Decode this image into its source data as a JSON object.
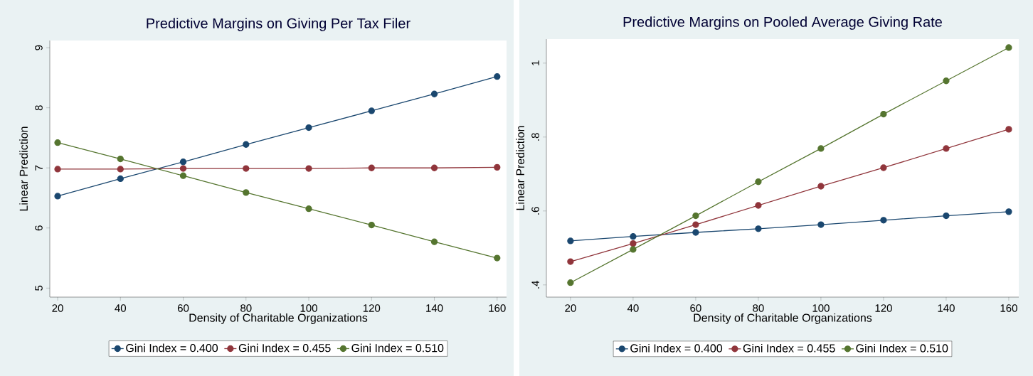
{
  "chart_data": [
    {
      "type": "line",
      "title": "Predictive Margins on Giving Per Tax Filer",
      "xlabel": "Density of Charitable Organizations",
      "ylabel": "Linear Prediction",
      "x": [
        20,
        40,
        60,
        80,
        100,
        120,
        140,
        160
      ],
      "series": [
        {
          "name": "Gini Index = 0.400",
          "color": "#1a476f",
          "values": [
            6.53,
            6.82,
            7.1,
            7.39,
            7.67,
            7.95,
            8.23,
            8.52
          ]
        },
        {
          "name": "Gini Index = 0.455",
          "color": "#90353b",
          "values": [
            6.98,
            6.98,
            6.99,
            6.99,
            6.99,
            7.0,
            7.0,
            7.01
          ]
        },
        {
          "name": "Gini Index = 0.510",
          "color": "#55752f",
          "values": [
            7.42,
            7.15,
            6.87,
            6.59,
            6.32,
            6.05,
            5.77,
            5.5
          ]
        }
      ],
      "xlim": [
        17.5,
        163
      ],
      "ylim": [
        4.85,
        9.12
      ],
      "xticks": [
        20,
        40,
        60,
        80,
        100,
        120,
        140,
        160
      ],
      "yticks": [
        5,
        6,
        7,
        8,
        9
      ],
      "legend": "bottom",
      "marker": "circle",
      "line_style": "solid"
    },
    {
      "type": "line",
      "title": "Predictive Margins on Pooled Average Giving Rate",
      "xlabel": "Density of Charitable Organizations",
      "ylabel": "Linear Prediction",
      "x": [
        20,
        40,
        60,
        80,
        100,
        120,
        140,
        160
      ],
      "series": [
        {
          "name": "Gini Index = 0.400",
          "color": "#1a476f",
          "values": [
            0.519,
            0.531,
            0.542,
            0.552,
            0.563,
            0.575,
            0.587,
            0.598
          ]
        },
        {
          "name": "Gini Index = 0.455",
          "color": "#90353b",
          "values": [
            0.463,
            0.512,
            0.563,
            0.615,
            0.667,
            0.717,
            0.769,
            0.821
          ]
        },
        {
          "name": "Gini Index = 0.510",
          "color": "#55752f",
          "values": [
            0.406,
            0.496,
            0.587,
            0.679,
            0.769,
            0.862,
            0.952,
            1.042
          ]
        }
      ],
      "xlim": [
        12.3,
        163.2
      ],
      "ylim": [
        0.367,
        1.065
      ],
      "xticks": [
        20,
        40,
        60,
        80,
        100,
        120,
        140,
        160
      ],
      "yticks": [
        {
          "value": 0.4,
          "label": ".4"
        },
        {
          "value": 0.6,
          "label": ".6"
        },
        {
          "value": 0.8,
          "label": ".8"
        },
        {
          "value": 1,
          "label": "1"
        }
      ],
      "legend": "bottom",
      "marker": "circle",
      "line_style": "solid"
    }
  ]
}
